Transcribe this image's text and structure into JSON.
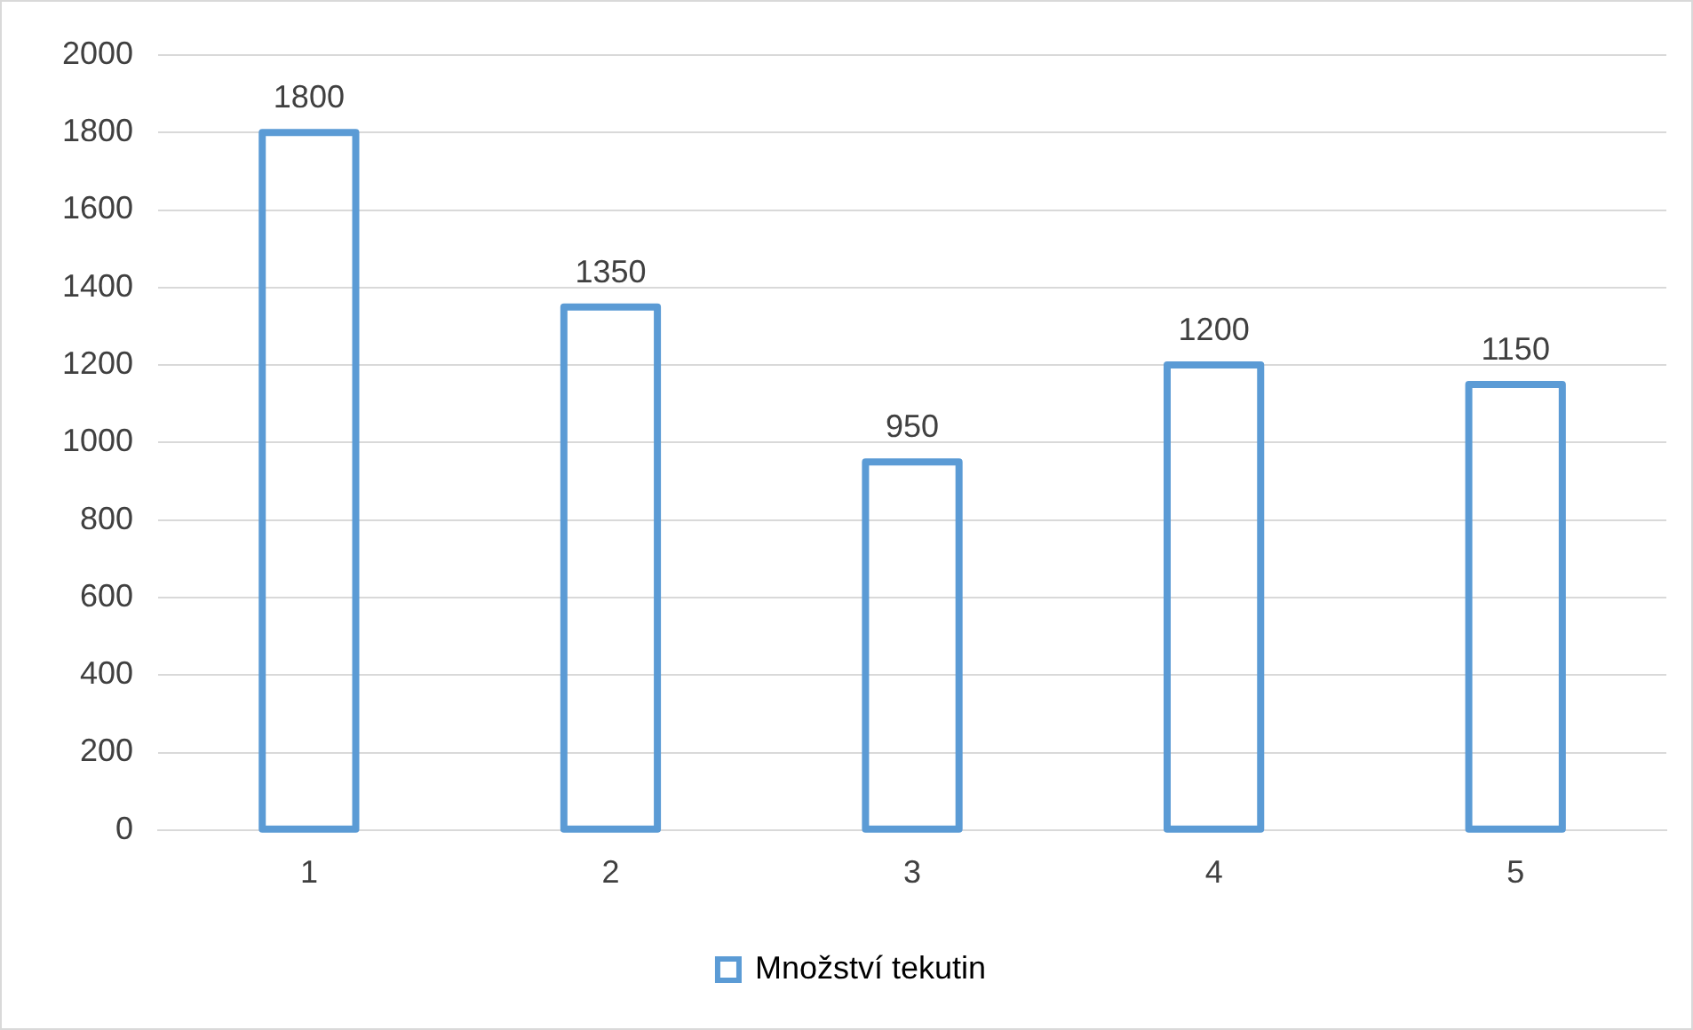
{
  "chart_data": {
    "type": "bar",
    "categories": [
      "1",
      "2",
      "3",
      "4",
      "5"
    ],
    "series": [
      {
        "name": "Množství tekutin",
        "color": "#5b9bd5",
        "values": [
          1800,
          1350,
          950,
          1200,
          1150
        ]
      }
    ],
    "ylim": [
      0,
      2000
    ],
    "yticks": [
      0,
      200,
      400,
      600,
      800,
      1000,
      1200,
      1400,
      1600,
      1800,
      2000
    ],
    "grid": "y",
    "legend": "bottom",
    "data_labels": true
  }
}
